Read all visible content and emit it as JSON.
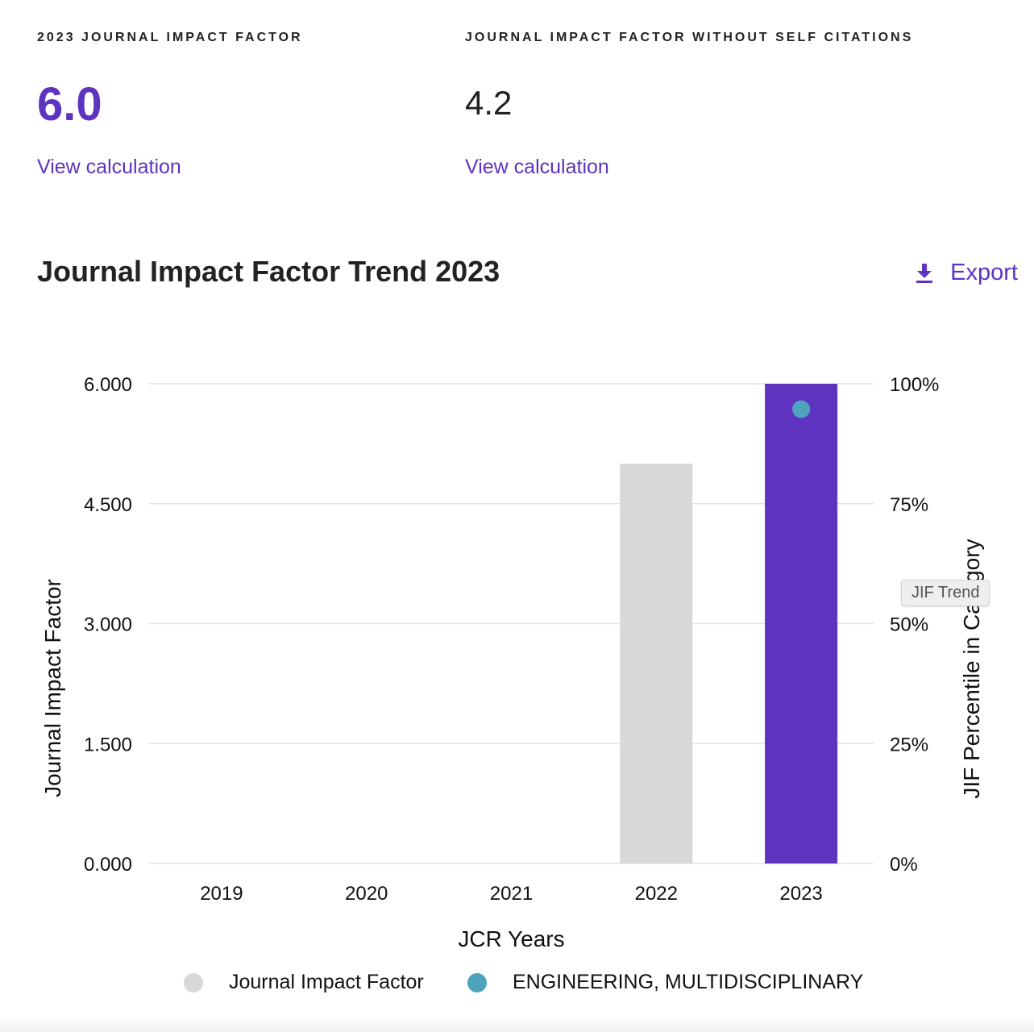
{
  "metrics": {
    "jif": {
      "label": "2023 JOURNAL IMPACT FACTOR",
      "value": "6.0",
      "link": "View calculation"
    },
    "jif_no_self": {
      "label": "JOURNAL IMPACT FACTOR WITHOUT SELF CITATIONS",
      "value": "4.2",
      "link": "View calculation"
    }
  },
  "trend": {
    "title": "Journal Impact Factor Trend 2023",
    "export_label": "Export",
    "tooltip": "JIF Trend"
  },
  "colors": {
    "accent": "#5e33bf",
    "bar_previous": "#d8d8d8",
    "percentile_dot": "#4fa3bd",
    "grid": "#e3e3e3"
  },
  "chart_data": {
    "type": "bar",
    "categories": [
      "2019",
      "2020",
      "2021",
      "2022",
      "2023"
    ],
    "xlabel": "JCR Years",
    "ylabel": "Journal Impact Factor",
    "y2label": "JIF Percentile in Category",
    "ylim": [
      0,
      6
    ],
    "yticks": [
      "0.000",
      "1.500",
      "3.000",
      "4.500",
      "6.000"
    ],
    "y2lim": [
      0,
      100
    ],
    "y2ticks": [
      "0%",
      "25%",
      "50%",
      "75%",
      "100%"
    ],
    "grid": true,
    "legend_position": "bottom",
    "series": [
      {
        "name": "Journal Impact Factor",
        "kind": "bar",
        "values": [
          null,
          null,
          null,
          5.0,
          6.0
        ],
        "colors": [
          null,
          null,
          null,
          "#d8d8d8",
          "#5e33bf"
        ]
      },
      {
        "name": "ENGINEERING, MULTIDISCIPLINARY",
        "kind": "point",
        "axis": "right",
        "values": [
          null,
          null,
          null,
          null,
          94.7
        ],
        "color": "#4fa3bd"
      }
    ],
    "legend": [
      {
        "label": "Journal Impact Factor",
        "color": "#d8d8d8"
      },
      {
        "label": "ENGINEERING, MULTIDISCIPLINARY",
        "color": "#4fa3bd"
      }
    ]
  }
}
